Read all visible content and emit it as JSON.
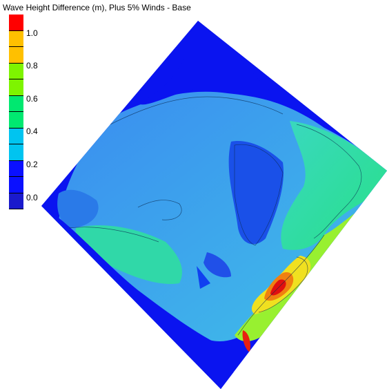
{
  "title": "Wave Height Difference (m), Plus 5% Winds - Base",
  "legend": {
    "labels": [
      "1.0",
      "0.8",
      "0.6",
      "0.4",
      "0.2",
      "0.0"
    ],
    "colors": [
      "#ff0000",
      "#ffc000",
      "#7ef400",
      "#00e870",
      "#00c4f0",
      "#1018e8",
      "#0a10ff",
      "#1a1acc"
    ]
  },
  "colors": {
    "deep_blue": "#0a14f0",
    "blue": "#1a6af0",
    "light_blue": "#3aa8f0",
    "cyan": "#40c8e8",
    "green_cyan": "#30e0a0",
    "green": "#30e070",
    "yellow_green": "#a0f030",
    "yellow": "#f0e020",
    "orange": "#f08010",
    "red": "#e01010"
  }
}
